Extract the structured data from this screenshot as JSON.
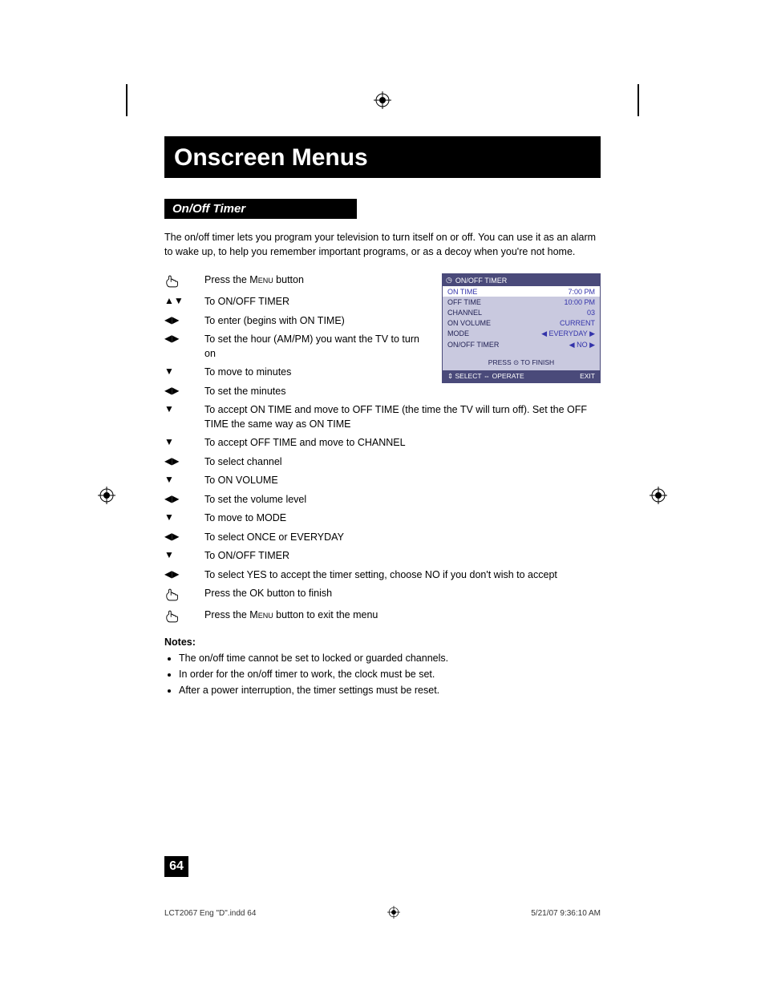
{
  "title": "Onscreen Menus",
  "section": "On/Off Timer",
  "intro": "The on/off timer lets you program your television to turn itself on or off. You can use it as an alarm to wake up, to help you remember important programs, or as a decoy when you're not home.",
  "steps": [
    {
      "icon": "hand",
      "text_pre": "Press the ",
      "sc": "Menu",
      "text_post": " button",
      "narrow": true
    },
    {
      "icon": "▲▼",
      "text": "To ON/OFF TIMER",
      "narrow": true
    },
    {
      "icon": "◀▶",
      "text": "To enter (begins with ON TIME)",
      "narrow": true
    },
    {
      "icon": "◀▶",
      "text": "To set the hour (AM/PM) you want the TV to turn on",
      "narrow": true
    },
    {
      "icon": "▼",
      "text": "To move to minutes",
      "narrow": true
    },
    {
      "icon": "◀▶",
      "text": "To set the minutes",
      "narrow": true
    },
    {
      "icon": "▼",
      "text": "To accept ON TIME and move to OFF TIME (the time the TV will turn off). Set the OFF TIME the same way as ON TIME"
    },
    {
      "icon": "▼",
      "text": "To accept OFF TIME and move to CHANNEL"
    },
    {
      "icon": "◀▶",
      "text": "To select channel"
    },
    {
      "icon": "▼",
      "text": "To ON VOLUME"
    },
    {
      "icon": "◀▶",
      "text": "To set the volume level"
    },
    {
      "icon": "▼",
      "text": "To move to MODE"
    },
    {
      "icon": "◀▶",
      "text": "To select ONCE or EVERYDAY"
    },
    {
      "icon": "▼",
      "text": "To ON/OFF TIMER"
    },
    {
      "icon": "◀▶",
      "text": "To select YES to accept the timer setting, choose NO if you don't wish to accept"
    },
    {
      "icon": "hand",
      "text": "Press the OK button to finish"
    },
    {
      "icon": "hand",
      "text_pre": "Press the ",
      "sc": "Menu",
      "text_post": " button to exit the menu"
    }
  ],
  "notes_label": "Notes:",
  "notes": [
    "The on/off time cannot be set to locked or guarded channels.",
    "In order for the on/off timer to work, the clock must be set.",
    "After a power interruption, the timer settings must be reset."
  ],
  "osd": {
    "title": "ON/OFF TIMER",
    "rows": [
      {
        "label": "ON TIME",
        "value": "7:00 PM",
        "hl": true
      },
      {
        "label": "OFF TIME",
        "value": "10:00 PM"
      },
      {
        "label": "CHANNEL",
        "value": "03"
      },
      {
        "label": "ON VOLUME",
        "value": "CURRENT"
      },
      {
        "label": "MODE",
        "value": "◀ EVERYDAY ▶"
      },
      {
        "label": "ON/OFF TIMER",
        "value": "◀ NO ▶"
      }
    ],
    "mid": "PRESS ⊙ TO FINISH",
    "foot_left": "⇕ SELECT ⇔ OPERATE",
    "foot_right": "EXIT"
  },
  "page_number": "64",
  "footer_left": "LCT2067 Eng \"D\".indd   64",
  "footer_right": "5/21/07   9:36:10 AM"
}
